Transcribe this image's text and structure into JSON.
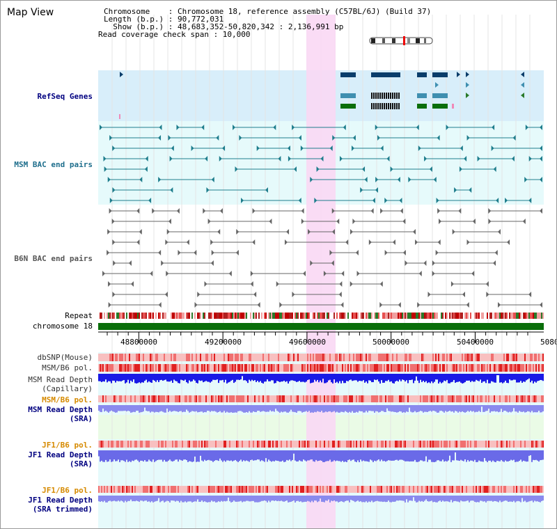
{
  "title": "Map View",
  "info": [
    "Chromosome    : Chromosome 18, reference assembly (C57BL/6J) (Build 37)",
    "Length (b.p.) : 90,772,031",
    "  Show (b.p.) : 48,683,352-50,820,342 : 2,136,991 bp",
    "Read coverage check span : 10,000"
  ],
  "ticks": [
    "48800000",
    "49200000",
    "49600000",
    "50000000",
    "50400000",
    "5080"
  ],
  "colors": {
    "refseq_bg": "#d8eefa",
    "track_bg": "#e6fafb",
    "highlight": "#f9d8f4",
    "gene_dark": "#0a3d6b",
    "gene_teal": "#3f8fb0",
    "gene_green": "#0a6e0a",
    "msm_bac": "#1e7d8c",
    "b6n_bac": "#666666",
    "chrom": "#0a6e0a",
    "label_blue": "#000080",
    "label_orange": "#d68a00",
    "label_teal": "#1e6e8c"
  },
  "tracks": {
    "refseq": "RefSeq Genes",
    "msm_bac": "MSM BAC end pairs",
    "b6n_bac": "B6N BAC end pairs",
    "repeat": "Repeat",
    "chromosome": "chromosome 18",
    "dbsnp": "dbSNP(Mouse)",
    "msm_pol_1": "MSM/B6 pol.",
    "msm_depth_cap_1": "MSM Read Depth",
    "msm_depth_cap_2": "(Capillary)",
    "msm_pol_2": "MSM/B6 pol.",
    "msm_depth_sra_1": "MSM Read Depth",
    "msm_depth_sra_2": "(SRA)",
    "jf1_pol_1": "JF1/B6 pol.",
    "jf1_depth_sra_1": "JF1 Read Depth",
    "jf1_depth_sra_2": "(SRA)",
    "jf1_pol_2": "JF1/B6 pol.",
    "jf1_depth_trim_1": "JF1 Read Depth",
    "jf1_depth_trim_2": "(SRA trimmed)"
  }
}
